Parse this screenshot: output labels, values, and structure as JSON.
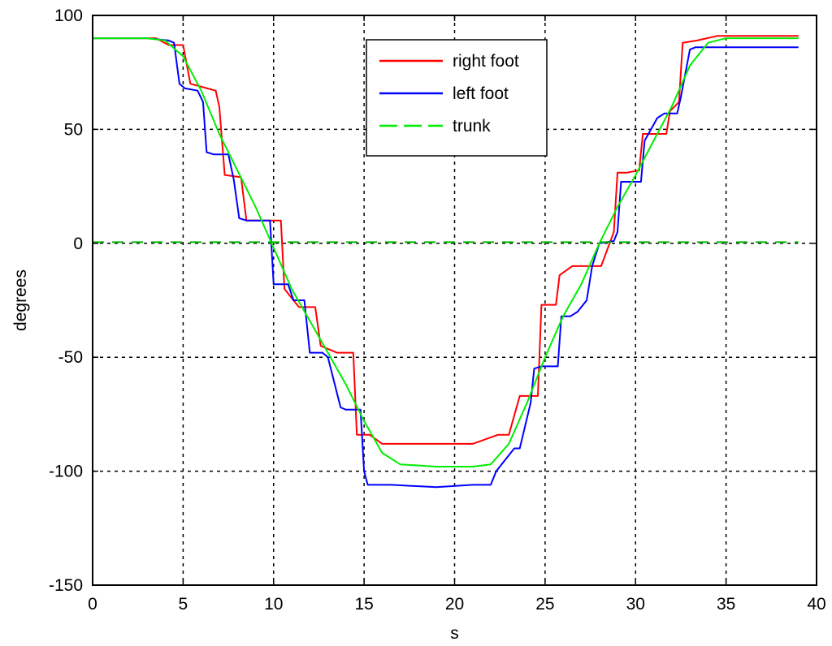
{
  "chart_data": {
    "type": "line",
    "title": "",
    "xlabel": "s",
    "ylabel": "degrees",
    "xlim": [
      0,
      40
    ],
    "ylim": [
      -150,
      100
    ],
    "xticks": [
      0,
      5,
      10,
      15,
      20,
      25,
      30,
      35,
      40
    ],
    "yticks": [
      100,
      50,
      0,
      -50,
      -100,
      -150
    ],
    "xtick_labels": [
      "0",
      "5",
      "10",
      "15",
      "20",
      "25",
      "30",
      "35",
      "40"
    ],
    "ytick_labels": [
      "100",
      "50",
      "0",
      "-50",
      "-100",
      "-150"
    ],
    "grid": true,
    "legend_position": "top-center",
    "series": [
      {
        "name": "right foot",
        "color": "#ff0000",
        "style": "solid",
        "x": [
          0,
          3.5,
          4.2,
          5.0,
          5.4,
          6.8,
          7.0,
          7.3,
          8.2,
          8.5,
          9.3,
          10.4,
          10.6,
          11.4,
          12.3,
          12.6,
          13.5,
          14.4,
          14.6,
          15.3,
          16.0,
          17.0,
          20.0,
          21.0,
          22.4,
          23.0,
          23.6,
          24.6,
          24.8,
          25.6,
          25.8,
          26.5,
          27.8,
          28.1,
          28.8,
          29.0,
          29.5,
          30.2,
          30.4,
          31.7,
          31.9,
          32.4,
          32.6,
          33.4,
          34.5,
          39.0
        ],
        "y": [
          90,
          90,
          87,
          87,
          70,
          67,
          60,
          30,
          29,
          10,
          10,
          10,
          -20,
          -28,
          -28,
          -45,
          -48,
          -48,
          -84,
          -84,
          -88,
          -88,
          -88,
          -88,
          -84,
          -84,
          -67,
          -67,
          -27,
          -27,
          -14,
          -10,
          -10,
          -10,
          5,
          31,
          31,
          32,
          48,
          48,
          58,
          62,
          88,
          89,
          91,
          91
        ]
      },
      {
        "name": "left foot",
        "color": "#0000ff",
        "style": "solid",
        "x": [
          0,
          3.0,
          4.2,
          4.5,
          4.8,
          5.1,
          5.8,
          6.1,
          6.3,
          6.7,
          7.5,
          7.8,
          8.1,
          8.5,
          9.3,
          9.8,
          10.0,
          10.8,
          11.1,
          11.7,
          12.0,
          12.7,
          13.0,
          13.7,
          14.0,
          14.8,
          15.0,
          15.2,
          16.5,
          19.0,
          21.0,
          22.0,
          22.3,
          23.3,
          23.6,
          24.2,
          24.4,
          24.8,
          25.7,
          25.9,
          26.4,
          26.8,
          27.3,
          27.6,
          28.0,
          28.8,
          29.0,
          29.2,
          30.3,
          30.5,
          31.2,
          31.6,
          32.3,
          32.5,
          33.0,
          33.3,
          34.0,
          39.0
        ],
        "y": [
          90,
          90,
          89,
          88,
          70,
          68,
          67,
          62,
          40,
          39,
          39,
          28,
          11,
          10,
          10,
          10,
          -18,
          -18,
          -25,
          -25,
          -48,
          -48,
          -50,
          -72,
          -73,
          -73,
          -100,
          -106,
          -106,
          -107,
          -106,
          -106,
          -100,
          -90,
          -90,
          -70,
          -55,
          -54,
          -54,
          -32,
          -32,
          -30,
          -25,
          -10,
          0,
          1,
          5,
          27,
          27,
          45,
          55,
          57,
          57,
          64,
          85,
          86,
          86,
          86
        ]
      },
      {
        "name": "trunk",
        "color": "#00ee00",
        "style": "dashed",
        "x": [
          0,
          3.0,
          4.0,
          5.0,
          6.0,
          7.0,
          8.0,
          9.0,
          10.0,
          11.0,
          12.0,
          13.0,
          14.0,
          15.0,
          16.0,
          17.0,
          19.0,
          21.0,
          22.0,
          23.0,
          24.0,
          25.0,
          26.0,
          27.0,
          28.0,
          29.0,
          30.0,
          31.0,
          32.0,
          33.0,
          34.0,
          35.0,
          39.0
        ],
        "y": [
          90,
          90,
          89,
          82,
          67,
          48,
          32,
          16,
          -2,
          -20,
          -34,
          -48,
          -62,
          -78,
          -92,
          -97,
          -98,
          -98,
          -97,
          -88,
          -70,
          -50,
          -32,
          -18,
          0,
          16,
          30,
          45,
          60,
          78,
          88,
          90,
          90
        ]
      },
      {
        "name": "",
        "color": "#00bb00",
        "style": "dashed-baseline",
        "x": [
          0,
          39
        ],
        "y": [
          0.5,
          0.5
        ]
      }
    ]
  }
}
